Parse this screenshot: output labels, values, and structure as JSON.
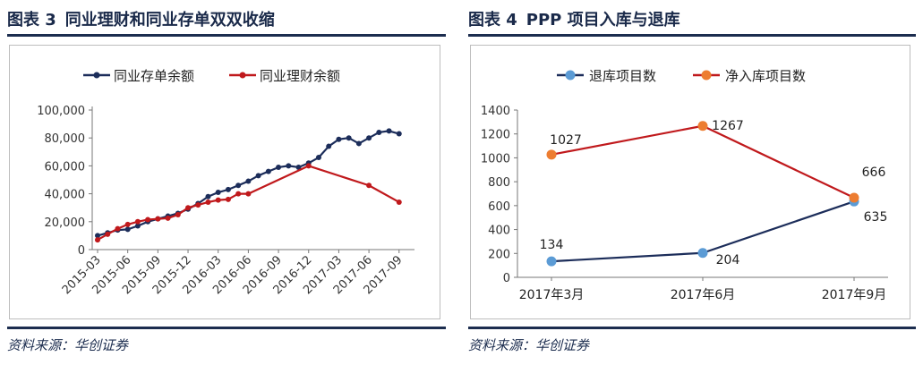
{
  "figures": [
    {
      "label": "图表 3",
      "title": "同业理财和同业存单双双收缩",
      "source": "资料来源：华创证券"
    },
    {
      "label": "图表 4",
      "title": "PPP 项目入库与退库",
      "source": "资料来源：华创证券"
    }
  ],
  "chart_data": [
    {
      "type": "line",
      "title": "同业理财和同业存单双双收缩",
      "x": [
        "2015-03",
        "2015-04",
        "2015-05",
        "2015-06",
        "2015-07",
        "2015-08",
        "2015-09",
        "2015-10",
        "2015-11",
        "2015-12",
        "2016-01",
        "2016-02",
        "2016-03",
        "2016-04",
        "2016-05",
        "2016-06",
        "2016-07",
        "2016-08",
        "2016-09",
        "2016-10",
        "2016-11",
        "2016-12",
        "2017-01",
        "2017-02",
        "2017-03",
        "2017-04",
        "2017-05",
        "2017-06",
        "2017-07",
        "2017-08",
        "2017-09",
        "2017-10"
      ],
      "xtick_labels": [
        "2015-03",
        "2015-06",
        "2015-09",
        "2015-12",
        "2016-03",
        "2016-06",
        "2016-09",
        "2016-12",
        "2017-03",
        "2017-06",
        "2017-09"
      ],
      "ytick_labels": [
        "0",
        "20,000",
        "40,000",
        "60,000",
        "80,000",
        "100,000"
      ],
      "ylim": [
        0,
        100000
      ],
      "legend_position": "top",
      "series": [
        {
          "name": "同业存单余额",
          "color": "#1c2d5a",
          "values": [
            10000,
            12000,
            14000,
            14500,
            17000,
            20000,
            22000,
            24000,
            26000,
            29000,
            33000,
            38000,
            41000,
            43000,
            46000,
            49000,
            53000,
            56000,
            59000,
            60000,
            59000,
            62000,
            66000,
            74000,
            79000,
            80000,
            76000,
            80000,
            84000,
            85000,
            83000,
            null
          ]
        },
        {
          "name": "同业理财余额",
          "color": "#c0191c",
          "values": [
            7000,
            11000,
            15000,
            18000,
            20000,
            21500,
            22000,
            22500,
            25000,
            30000,
            32000,
            34000,
            35500,
            36000,
            40000,
            40000,
            null,
            null,
            null,
            null,
            null,
            60000,
            null,
            null,
            null,
            null,
            null,
            46000,
            null,
            null,
            34000,
            null
          ]
        }
      ]
    },
    {
      "type": "line",
      "title": "PPP 项目入库与退库",
      "categories": [
        "2017年3月",
        "2017年6月",
        "2017年9月"
      ],
      "ytick_labels": [
        "0",
        "200",
        "400",
        "600",
        "800",
        "1000",
        "1200",
        "1400"
      ],
      "ylim": [
        0,
        1400
      ],
      "legend_position": "top",
      "series": [
        {
          "name": "退库项目数",
          "color": "#1c2d5a",
          "marker_color": "#5b9bd5",
          "values": [
            134,
            204,
            635
          ],
          "labels": [
            "134",
            "204",
            "635"
          ]
        },
        {
          "name": "净入库项目数",
          "color": "#c0191c",
          "marker_color": "#ed7d31",
          "values": [
            1027,
            1267,
            666
          ],
          "labels": [
            "1027",
            "1267",
            "666"
          ]
        }
      ]
    }
  ]
}
